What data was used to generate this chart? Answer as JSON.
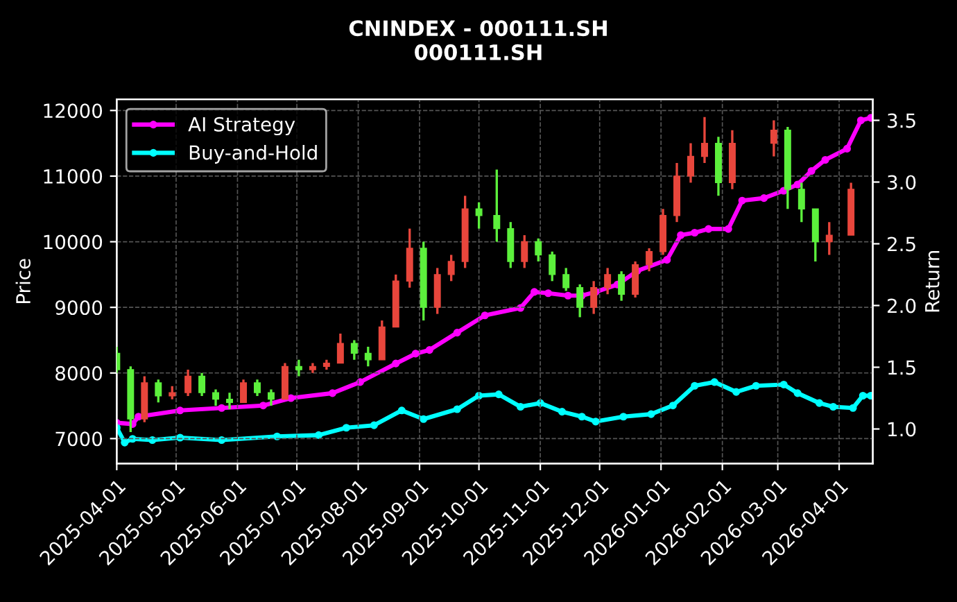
{
  "chart_data": {
    "type": "candlestick",
    "title": "CNINDEX - 000111.SH",
    "subtitle": "000111.SH",
    "ylabel": "Price",
    "y2label": "Return",
    "x": [
      "2025-04-01",
      "2025-04-08",
      "2025-04-15",
      "2025-04-22",
      "2025-04-29",
      "2025-05-07",
      "2025-05-14",
      "2025-05-21",
      "2025-05-28",
      "2025-06-04",
      "2025-06-11",
      "2025-06-18",
      "2025-06-25",
      "2025-07-02",
      "2025-07-09",
      "2025-07-16",
      "2025-07-23",
      "2025-07-30",
      "2025-08-06",
      "2025-08-13",
      "2025-08-20",
      "2025-08-27",
      "2025-09-03",
      "2025-09-10",
      "2025-09-17",
      "2025-09-24",
      "2025-10-01",
      "2025-10-10",
      "2025-10-17",
      "2025-10-24",
      "2025-10-31",
      "2025-11-07",
      "2025-11-14",
      "2025-11-21",
      "2025-11-28",
      "2025-12-05",
      "2025-12-12",
      "2025-12-19",
      "2025-12-26",
      "2026-01-02",
      "2026-01-09",
      "2026-01-16",
      "2026-01-23",
      "2026-01-30",
      "2026-02-06",
      "2026-02-27",
      "2026-03-06",
      "2026-03-13",
      "2026-03-20",
      "2026-03-27",
      "2026-04-07"
    ],
    "ohlc": [
      [
        8300,
        8400,
        8000,
        8050
      ],
      [
        8050,
        8100,
        7100,
        7300
      ],
      [
        7300,
        7950,
        7250,
        7850
      ],
      [
        7850,
        7900,
        7550,
        7650
      ],
      [
        7650,
        7800,
        7600,
        7700
      ],
      [
        7700,
        8050,
        7650,
        7950
      ],
      [
        7950,
        8000,
        7650,
        7700
      ],
      [
        7700,
        7750,
        7500,
        7600
      ],
      [
        7600,
        7700,
        7450,
        7550
      ],
      [
        7550,
        7900,
        7550,
        7850
      ],
      [
        7850,
        7900,
        7650,
        7700
      ],
      [
        7700,
        7750,
        7500,
        7600
      ],
      [
        7600,
        8150,
        7600,
        8100
      ],
      [
        8100,
        8200,
        7950,
        8050
      ],
      [
        8050,
        8150,
        8000,
        8100
      ],
      [
        8100,
        8200,
        8050,
        8150
      ],
      [
        8150,
        8600,
        8150,
        8450
      ],
      [
        8450,
        8500,
        8200,
        8300
      ],
      [
        8300,
        8400,
        8100,
        8200
      ],
      [
        8200,
        8800,
        8200,
        8700
      ],
      [
        8700,
        9500,
        8700,
        9400
      ],
      [
        9400,
        10200,
        9300,
        9900
      ],
      [
        9900,
        10000,
        8800,
        9000
      ],
      [
        9000,
        9600,
        8900,
        9500
      ],
      [
        9500,
        9800,
        9400,
        9700
      ],
      [
        9700,
        10700,
        9600,
        10500
      ],
      [
        10500,
        10600,
        10200,
        10400
      ],
      [
        10400,
        11100,
        10000,
        10200
      ],
      [
        10200,
        10300,
        9600,
        9700
      ],
      [
        9700,
        10100,
        9600,
        10000
      ],
      [
        10000,
        10050,
        9700,
        9800
      ],
      [
        9800,
        9850,
        9400,
        9500
      ],
      [
        9500,
        9600,
        9250,
        9300
      ],
      [
        9300,
        9350,
        8850,
        9000
      ],
      [
        9000,
        9400,
        8900,
        9300
      ],
      [
        9300,
        9600,
        9200,
        9500
      ],
      [
        9500,
        9550,
        9100,
        9200
      ],
      [
        9200,
        9700,
        9150,
        9650
      ],
      [
        9650,
        9900,
        9550,
        9850
      ],
      [
        9850,
        10500,
        9800,
        10400
      ],
      [
        10400,
        11200,
        10300,
        11000
      ],
      [
        11000,
        11500,
        10900,
        11300
      ],
      [
        11300,
        11900,
        11200,
        11500
      ],
      [
        11500,
        11600,
        10700,
        10900
      ],
      [
        10900,
        11700,
        10800,
        11500
      ],
      [
        11500,
        11850,
        11300,
        11700
      ],
      [
        11700,
        11750,
        10500,
        10800
      ],
      [
        10800,
        10900,
        10300,
        10500
      ],
      [
        10500,
        10500,
        9700,
        10000
      ],
      [
        10000,
        10300,
        9800,
        10100
      ],
      [
        10100,
        10900,
        10100,
        10800
      ]
    ],
    "colors": [
      "#5cf03c",
      "#5cf03c",
      "#e8463c",
      "#5cf03c",
      "#e8463c",
      "#e8463c",
      "#5cf03c",
      "#5cf03c",
      "#5cf03c",
      "#e8463c",
      "#5cf03c",
      "#5cf03c",
      "#e8463c",
      "#5cf03c",
      "#e8463c",
      "#e8463c",
      "#e8463c",
      "#5cf03c",
      "#5cf03c",
      "#e8463c",
      "#e8463c",
      "#e8463c",
      "#5cf03c",
      "#e8463c",
      "#e8463c",
      "#e8463c",
      "#5cf03c",
      "#5cf03c",
      "#5cf03c",
      "#e8463c",
      "#5cf03c",
      "#5cf03c",
      "#5cf03c",
      "#5cf03c",
      "#e8463c",
      "#e8463c",
      "#5cf03c",
      "#e8463c",
      "#e8463c",
      "#e8463c",
      "#e8463c",
      "#e8463c",
      "#e8463c",
      "#5cf03c",
      "#e8463c",
      "#e8463c",
      "#5cf03c",
      "#5cf03c",
      "#5cf03c",
      "#e8463c",
      "#e8463c"
    ],
    "series": [
      {
        "name": "AI Strategy",
        "type": "line",
        "axis": "y2",
        "color": "#ff00ff",
        "x": [
          "2025-04-01",
          "2025-04-09",
          "2025-04-12",
          "2025-05-03",
          "2025-05-24",
          "2025-06-14",
          "2025-06-28",
          "2025-07-19",
          "2025-08-02",
          "2025-08-20",
          "2025-08-30",
          "2025-09-06",
          "2025-09-20",
          "2025-10-04",
          "2025-10-22",
          "2025-10-29",
          "2025-11-05",
          "2025-11-15",
          "2025-11-22",
          "2025-11-29",
          "2025-12-10",
          "2025-12-20",
          "2026-01-04",
          "2026-01-11",
          "2026-01-18",
          "2026-01-25",
          "2026-02-04",
          "2026-02-11",
          "2026-02-22",
          "2026-03-04",
          "2026-03-11",
          "2026-03-18",
          "2026-03-25",
          "2026-04-05",
          "2026-04-12",
          "2026-04-17"
        ],
        "values": [
          1.05,
          1.04,
          1.1,
          1.15,
          1.17,
          1.19,
          1.25,
          1.29,
          1.38,
          1.53,
          1.61,
          1.64,
          1.78,
          1.92,
          1.98,
          2.11,
          2.1,
          2.08,
          2.08,
          2.11,
          2.17,
          2.28,
          2.37,
          2.57,
          2.59,
          2.62,
          2.62,
          2.85,
          2.87,
          2.93,
          2.98,
          3.09,
          3.18,
          3.27,
          3.5,
          3.52
        ]
      },
      {
        "name": "Buy-and-Hold",
        "type": "line",
        "axis": "y2",
        "color": "#00ffff",
        "x": [
          "2025-04-01",
          "2025-04-05",
          "2025-04-09",
          "2025-04-19",
          "2025-05-03",
          "2025-05-24",
          "2025-06-21",
          "2025-07-12",
          "2025-07-26",
          "2025-08-09",
          "2025-08-23",
          "2025-09-03",
          "2025-09-20",
          "2025-10-01",
          "2025-10-11",
          "2025-10-22",
          "2025-11-01",
          "2025-11-12",
          "2025-11-22",
          "2025-11-29",
          "2025-12-13",
          "2025-12-27",
          "2026-01-07",
          "2026-01-18",
          "2026-01-28",
          "2026-02-08",
          "2026-02-18",
          "2026-03-04",
          "2026-03-11",
          "2026-03-22",
          "2026-03-29",
          "2026-04-08",
          "2026-04-13",
          "2026-04-17"
        ],
        "values": [
          1.01,
          0.89,
          0.92,
          0.91,
          0.93,
          0.91,
          0.94,
          0.95,
          1.01,
          1.03,
          1.15,
          1.08,
          1.16,
          1.27,
          1.28,
          1.18,
          1.21,
          1.14,
          1.1,
          1.06,
          1.1,
          1.12,
          1.19,
          1.35,
          1.38,
          1.3,
          1.35,
          1.36,
          1.29,
          1.21,
          1.18,
          1.17,
          1.27,
          1.27
        ]
      }
    ],
    "xlim": [
      "2025-04-01",
      "2026-04-18"
    ],
    "xticks": [
      "2025-04-01",
      "2025-05-01",
      "2025-06-01",
      "2025-07-01",
      "2025-08-01",
      "2025-09-01",
      "2025-10-01",
      "2025-11-01",
      "2025-12-01",
      "2026-01-01",
      "2026-02-01",
      "2026-03-01",
      "2026-04-01"
    ],
    "ylim": [
      6620,
      12170
    ],
    "yticks": [
      7000,
      8000,
      9000,
      10000,
      11000,
      12000
    ],
    "y2lim": [
      0.72,
      3.67
    ],
    "y2ticks": [
      {
        "value": 1,
        "label": "1.0"
      },
      {
        "value": 1.5,
        "label": "1.5"
      },
      {
        "value": 2,
        "label": "2.0"
      },
      {
        "value": 2.5,
        "label": "2.5"
      },
      {
        "value": 3,
        "label": "3.0"
      },
      {
        "value": 3.5,
        "label": "3.5"
      }
    ],
    "grid": true,
    "legend": "top left",
    "marker": "circle",
    "line_style": "solid"
  }
}
